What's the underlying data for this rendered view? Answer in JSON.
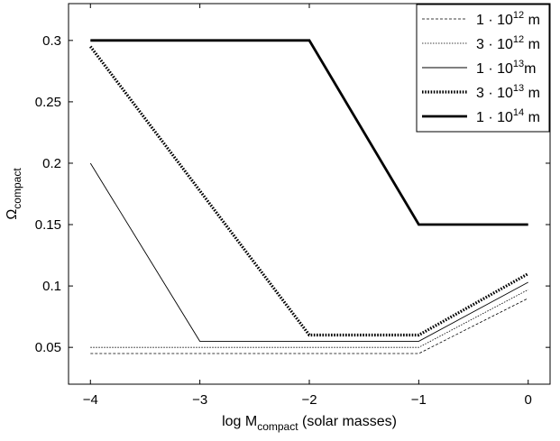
{
  "chart_data": {
    "type": "line",
    "xlabel": "log M",
    "xlabel_sub": "compact",
    "xlabel_suffix": " (solar masses)",
    "ylabel": "Ω",
    "ylabel_sub": "compact",
    "xlim": [
      -4.2,
      0.2
    ],
    "ylim": [
      0.02,
      0.33
    ],
    "x_ticks": [
      -4,
      -3,
      -2,
      -1,
      0
    ],
    "x_tick_labels": [
      "−4",
      "−3",
      "−2",
      "−1",
      "0"
    ],
    "y_ticks": [
      0.05,
      0.1,
      0.15,
      0.2,
      0.25,
      0.3
    ],
    "y_tick_labels": [
      "0.05",
      "0.1",
      "0.15",
      "0.2",
      "0.25",
      "0.3"
    ],
    "grid": false,
    "legend_position": "top-right",
    "series": [
      {
        "name": "1 · 10",
        "exp": "12",
        "unit": " m",
        "style": "dashed-thin",
        "x": [
          -4,
          -1,
          0
        ],
        "y": [
          0.045,
          0.045,
          0.09
        ]
      },
      {
        "name": "3 · 10",
        "exp": "12",
        "unit": " m",
        "style": "dotted-thin",
        "x": [
          -4,
          -1,
          0
        ],
        "y": [
          0.05,
          0.05,
          0.097
        ]
      },
      {
        "name": "1 · 10",
        "exp": "13",
        "unit": "m",
        "style": "solid-thin",
        "x": [
          -4,
          -3,
          -1,
          0
        ],
        "y": [
          0.2,
          0.055,
          0.055,
          0.103
        ]
      },
      {
        "name": "3 · 10",
        "exp": "13",
        "unit": " m",
        "style": "dotted-thick",
        "x": [
          -4,
          -2,
          -1,
          0
        ],
        "y": [
          0.295,
          0.06,
          0.06,
          0.11
        ]
      },
      {
        "name": "1 · 10",
        "exp": "14",
        "unit": " m",
        "style": "solid-thick",
        "x": [
          -4,
          -2,
          -1,
          0
        ],
        "y": [
          0.3,
          0.3,
          0.15,
          0.15
        ]
      }
    ]
  }
}
